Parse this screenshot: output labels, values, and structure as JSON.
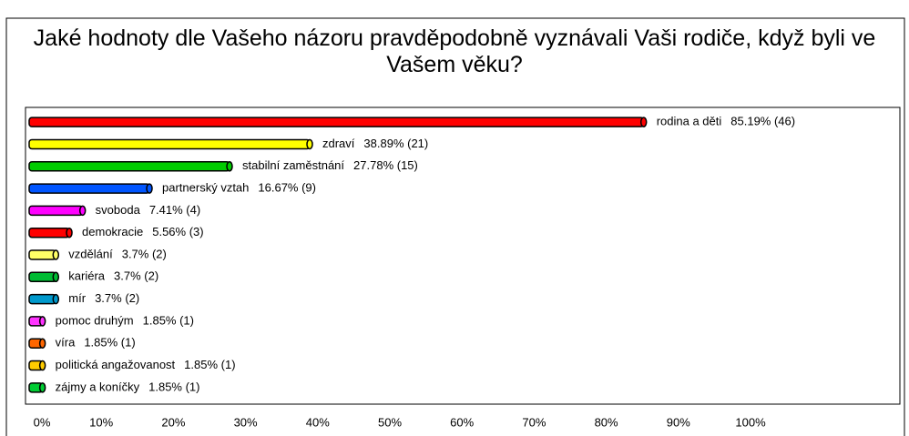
{
  "chart_data": {
    "type": "bar",
    "orientation": "horizontal",
    "title": "Jaké hodnoty dle Vašeho názoru pravděpodobně vyznávali Vaši rodiče, když byli ve Vašem věku?",
    "categories": [
      "rodina a děti",
      "zdraví",
      "stabilní zaměstnání",
      "partnerský vztah",
      "svoboda",
      "demokracie",
      "vzdělání",
      "kariéra",
      "mír",
      "pomoc druhým",
      "víra",
      "politická angažovanost",
      "zájmy a koníčky"
    ],
    "values": [
      85.19,
      38.89,
      27.78,
      16.67,
      7.41,
      5.56,
      3.7,
      3.7,
      3.7,
      1.85,
      1.85,
      1.85,
      1.85
    ],
    "value_labels": [
      "85.19% (46)",
      "38.89% (21)",
      "27.78% (15)",
      "16.67% (9)",
      "7.41% (4)",
      "5.56% (3)",
      "3.7% (2)",
      "3.7% (2)",
      "3.7% (2)",
      "1.85% (1)",
      "1.85% (1)",
      "1.85% (1)",
      "1.85% (1)"
    ],
    "colors": [
      "#ff0000",
      "#ffff00",
      "#00cc00",
      "#0055ff",
      "#ff00ff",
      "#ff0000",
      "#ffff66",
      "#00bb33",
      "#0099cc",
      "#ff33ff",
      "#ff6600",
      "#ffcc00",
      "#00cc33"
    ],
    "xlim": [
      0,
      100
    ],
    "xticks": [
      {
        "value": 0,
        "label": "0%"
      },
      {
        "value": 10,
        "label": "10%"
      },
      {
        "value": 20,
        "label": "20%"
      },
      {
        "value": 30,
        "label": "30%"
      },
      {
        "value": 40,
        "label": "40%"
      },
      {
        "value": 50,
        "label": "50%"
      },
      {
        "value": 60,
        "label": "60%"
      },
      {
        "value": 70,
        "label": "70%"
      },
      {
        "value": 80,
        "label": "80%"
      },
      {
        "value": 90,
        "label": "90%"
      },
      {
        "value": 100,
        "label": "100%"
      }
    ]
  }
}
